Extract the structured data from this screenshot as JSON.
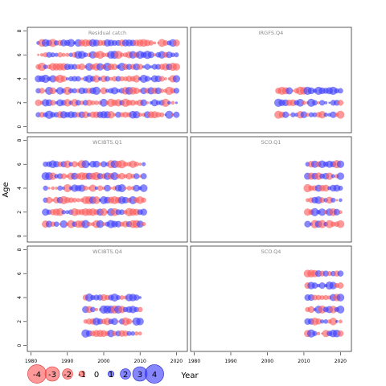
{
  "figure": {
    "y_label": "Age",
    "x_label": "Year",
    "x_ticks": [
      "1980",
      "1990",
      "2000",
      "2010",
      "2020"
    ],
    "y_ticks": [
      "0",
      "2",
      "4",
      "6",
      "8"
    ],
    "legend_labels": [
      "-4",
      "-3",
      "-2",
      "-1",
      "0",
      "1",
      "2",
      "3",
      "4"
    ],
    "colors": {
      "positive": "#3b3bff",
      "negative": "#ff5a5a",
      "frame": "#333333",
      "title": "#8a8a8a"
    }
  },
  "chart_data": {
    "type": "bubble-scatter",
    "layout": "3 rows x 2 columns of panels sharing axes",
    "x_axis": {
      "label": "Year",
      "range": [
        1979,
        2023
      ]
    },
    "y_axis": {
      "label": "Age",
      "range": [
        -0.5,
        8.3
      ]
    },
    "legend_placement": "bottom-left",
    "legend_values": [
      -4,
      -3,
      -2,
      -1,
      0,
      1,
      2,
      3,
      4
    ],
    "encoding": "bubble area ~ |residual|; blue = positive, red = negative",
    "panels": [
      {
        "title": "Residual catch",
        "years": [
          1982,
          2020
        ],
        "ages": [
          1,
          7
        ],
        "approximate": true
      },
      {
        "title": "IRGFS.Q4",
        "years": [
          2003,
          2020
        ],
        "ages": [
          1,
          3
        ],
        "approximate": true
      },
      {
        "title": "WCIBTS.Q1",
        "years": [
          1984,
          2011
        ],
        "ages": [
          1,
          6
        ],
        "approximate": true
      },
      {
        "title": "SCO.Q1",
        "years": [
          2011,
          2020
        ],
        "ages": [
          1,
          6
        ],
        "approximate": true
      },
      {
        "title": "WCIBTS.Q4",
        "years": [
          1995,
          2010
        ],
        "ages": [
          1,
          4
        ],
        "approximate": true
      },
      {
        "title": "SCO.Q4",
        "years": [
          2011,
          2020
        ],
        "ages": [
          1,
          6
        ],
        "approximate": true
      }
    ]
  }
}
